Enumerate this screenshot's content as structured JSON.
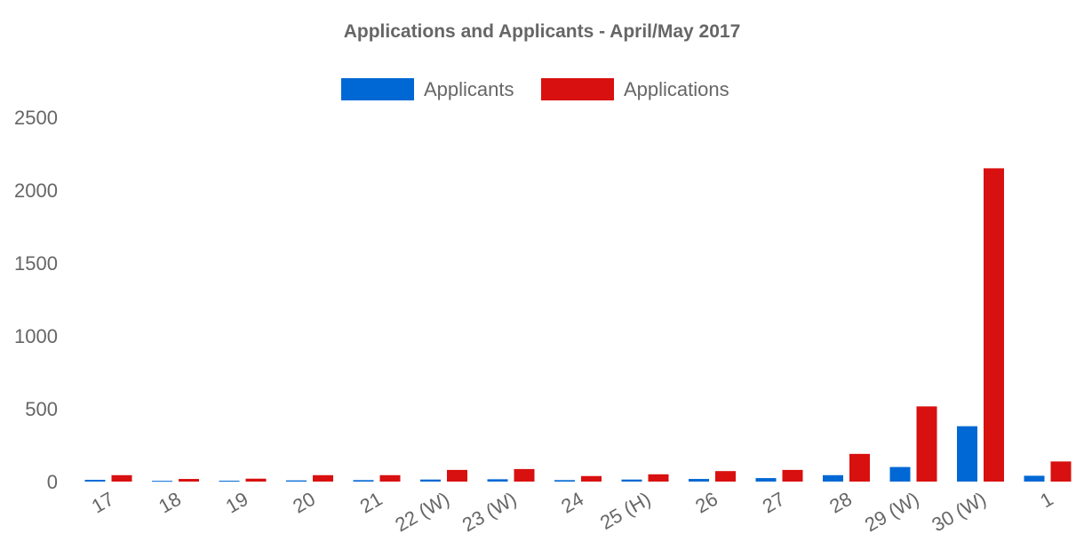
{
  "chart_data": {
    "type": "bar",
    "title": "Applications and Applicants - April/May 2017",
    "xlabel": "",
    "ylabel": "",
    "ylim": [
      0,
      2500
    ],
    "yticks": [
      0,
      500,
      1000,
      1500,
      2000,
      2500
    ],
    "grid": false,
    "legend_position": "top-center",
    "categories": [
      "17",
      "18",
      "19",
      "20",
      "21",
      "22 (W)",
      "23 (W)",
      "24",
      "25 (H)",
      "26",
      "27",
      "28",
      "29 (W)",
      "30 (W)",
      "1"
    ],
    "series": [
      {
        "name": "Applicants",
        "color": "#0068d4",
        "values": [
          12,
          5,
          6,
          8,
          10,
          14,
          16,
          10,
          14,
          18,
          24,
          44,
          100,
          380,
          40
        ]
      },
      {
        "name": "Applications",
        "color": "#d91010",
        "values": [
          44,
          18,
          20,
          44,
          44,
          80,
          86,
          38,
          50,
          72,
          80,
          190,
          516,
          2150,
          138
        ]
      }
    ]
  }
}
